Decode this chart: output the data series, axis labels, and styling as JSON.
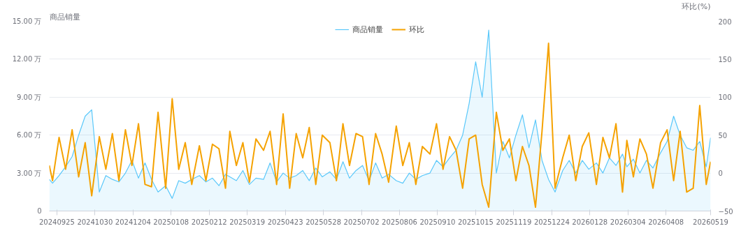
{
  "chart_data": {
    "type": "line",
    "ylabel": "商品销量",
    "y2label": "环比(%)",
    "legend": "top",
    "grid": "y",
    "marker": "none",
    "x": [
      "2024-09-18",
      "2024-09-21",
      "2024-09-27",
      "2024-10-03",
      "2024-10-09",
      "2024-10-15",
      "2024-10-21",
      "2024-10-27",
      "2024-11-03",
      "2024-11-09",
      "2024-11-15",
      "2024-11-21",
      "2024-11-27",
      "2024-12-03",
      "2024-12-09",
      "2024-12-15",
      "2024-12-21",
      "2024-12-27",
      "2025-01-03",
      "2025-01-09",
      "2025-01-15",
      "2025-01-21",
      "2025-01-27",
      "2025-02-03",
      "2025-02-09",
      "2025-02-15",
      "2025-02-21",
      "2025-02-27",
      "2025-03-03",
      "2025-03-09",
      "2025-03-15",
      "2025-03-21",
      "2025-03-27",
      "2025-04-03",
      "2025-04-09",
      "2025-04-15",
      "2025-04-21",
      "2025-04-27",
      "2025-05-03",
      "2025-05-09",
      "2025-05-15",
      "2025-05-21",
      "2025-05-27",
      "2025-06-03",
      "2025-06-09",
      "2025-06-15",
      "2025-06-21",
      "2025-06-27",
      "2025-07-03",
      "2025-07-09",
      "2025-07-15",
      "2025-07-21",
      "2025-07-27",
      "2025-08-03",
      "2025-08-09",
      "2025-08-15",
      "2025-08-21",
      "2025-08-27",
      "2025-09-03",
      "2025-09-09",
      "2025-09-15",
      "2025-09-21",
      "2025-09-27",
      "2025-10-03",
      "2025-10-09",
      "2025-10-15",
      "2025-10-21",
      "2025-10-27",
      "2025-11-03",
      "2025-11-09",
      "2025-11-15",
      "2025-11-21",
      "2025-11-27",
      "2025-12-03",
      "2025-12-09",
      "2025-12-15",
      "2025-12-21",
      "2025-12-27",
      "2026-01-03",
      "2026-01-09",
      "2026-01-15",
      "2026-01-21",
      "2026-01-27",
      "2026-02-03",
      "2026-02-09",
      "2026-02-15",
      "2026-02-21",
      "2026-02-27",
      "2026-03-03",
      "2026-03-09",
      "2026-03-15",
      "2026-03-21",
      "2026-03-27",
      "2026-04-03",
      "2026-04-09",
      "2026-04-15",
      "2026-04-21",
      "2026-04-27",
      "2026-05-03",
      "2026-05-09",
      "2026-05-15",
      "2026-05-19"
    ],
    "xlim": [
      "2024-09-18",
      "2026-05-19"
    ],
    "xticks": [
      {
        "value": "2024-09-25",
        "label": "20240925"
      },
      {
        "value": "2024-10-30",
        "label": "20241030"
      },
      {
        "value": "2024-12-04",
        "label": "20241204"
      },
      {
        "value": "2025-01-08",
        "label": "20250108"
      },
      {
        "value": "2025-02-12",
        "label": "20250212"
      },
      {
        "value": "2025-03-19",
        "label": "20250319"
      },
      {
        "value": "2025-04-23",
        "label": "20250423"
      },
      {
        "value": "2025-05-28",
        "label": "20250528"
      },
      {
        "value": "2025-07-02",
        "label": "20250702"
      },
      {
        "value": "2025-08-06",
        "label": "20250806"
      },
      {
        "value": "2025-09-10",
        "label": "20250910"
      },
      {
        "value": "2025-10-15",
        "label": "20251015"
      },
      {
        "value": "2025-11-19",
        "label": "20251119"
      },
      {
        "value": "2025-12-24",
        "label": "20251224"
      },
      {
        "value": "2026-01-28",
        "label": "20260128"
      },
      {
        "value": "2026-03-04",
        "label": "20260304"
      },
      {
        "value": "2026-04-08",
        "label": "20260408"
      },
      {
        "value": "2026-05-19",
        "label": "20260519"
      }
    ],
    "ylim": [
      0,
      15
    ],
    "yticks": [
      0,
      {
        "value": 3,
        "label": "3.00 万"
      },
      {
        "value": 6,
        "label": "6.00 万"
      },
      {
        "value": 9,
        "label": "9.00 万"
      },
      {
        "value": 12,
        "label": "12.00 万"
      },
      {
        "value": 15,
        "label": "15.00 万"
      }
    ],
    "y2lim": [
      -50,
      200
    ],
    "y2ticks": [
      -50,
      0,
      50,
      100,
      150,
      200
    ],
    "series": [
      {
        "name": "商品销量",
        "type": "area",
        "color": "#5ac8fa",
        "values": [
          2.5,
          2.2,
          2.8,
          3.5,
          4.3,
          6.0,
          7.5,
          8.0,
          1.5,
          2.8,
          2.5,
          2.3,
          3.0,
          4.0,
          2.6,
          3.8,
          2.5,
          1.5,
          2.0,
          1.0,
          2.4,
          2.2,
          2.5,
          2.8,
          2.3,
          2.6,
          2.0,
          2.9,
          2.7,
          2.4,
          3.2,
          2.1,
          2.6,
          2.5,
          3.8,
          2.3,
          3.0,
          2.6,
          2.8,
          3.2,
          2.4,
          3.4,
          2.7,
          3.1,
          2.5,
          3.9,
          2.6,
          3.2,
          3.6,
          2.4,
          3.8,
          2.6,
          2.9,
          2.4,
          2.2,
          3.0,
          2.5,
          2.8,
          3.0,
          4.0,
          3.5,
          4.2,
          4.8,
          6.0,
          8.5,
          11.8,
          9.0,
          14.3,
          3.0,
          5.5,
          4.2,
          6.0,
          7.6,
          5.0,
          7.2,
          4.0,
          2.5,
          1.5,
          3.2,
          4.0,
          3.0,
          4.0,
          3.3,
          3.8,
          3.0,
          4.2,
          3.6,
          4.5,
          3.5,
          4.1,
          3.0,
          4.0,
          3.4,
          4.6,
          5.5,
          7.5,
          6.0,
          5.0,
          4.8,
          5.5,
          3.5,
          5.8
        ]
      },
      {
        "name": "环比",
        "axis": "y2",
        "color": "#f5a200",
        "values": [
          10,
          -10,
          47,
          5,
          57,
          -5,
          40,
          -30,
          48,
          5,
          52,
          -10,
          57,
          10,
          65,
          -15,
          -18,
          80,
          -20,
          98,
          5,
          40,
          -15,
          36,
          -10,
          38,
          32,
          -20,
          55,
          10,
          40,
          -12,
          45,
          30,
          55,
          -15,
          78,
          -20,
          52,
          20,
          60,
          -15,
          50,
          40,
          -10,
          65,
          10,
          52,
          48,
          -15,
          52,
          25,
          -12,
          62,
          10,
          40,
          -15,
          35,
          25,
          65,
          5,
          48,
          30,
          -20,
          45,
          50,
          -15,
          -45,
          80,
          30,
          45,
          -10,
          35,
          10,
          -45,
          55,
          171,
          -20,
          20,
          50,
          -10,
          35,
          53,
          -15,
          47,
          20,
          65,
          -25,
          43,
          -5,
          45,
          25,
          -20,
          40,
          57,
          -10,
          55,
          -25,
          -20,
          89,
          -15,
          15
        ]
      }
    ]
  }
}
